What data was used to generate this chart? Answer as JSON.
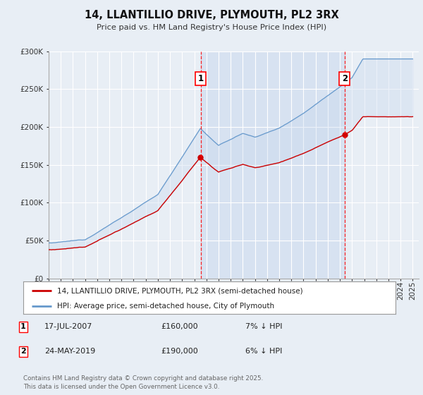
{
  "title": "14, LLANTILLIO DRIVE, PLYMOUTH, PL2 3RX",
  "subtitle": "Price paid vs. HM Land Registry's House Price Index (HPI)",
  "background_color": "#e8eef5",
  "plot_bg_color": "#e8eef5",
  "ylim": [
    0,
    300000
  ],
  "yticks": [
    0,
    50000,
    100000,
    150000,
    200000,
    250000,
    300000
  ],
  "ytick_labels": [
    "£0",
    "£50K",
    "£100K",
    "£150K",
    "£200K",
    "£250K",
    "£300K"
  ],
  "xstart_year": 1995,
  "xend_year": 2025,
  "hpi_color": "#6699cc",
  "price_color": "#cc0000",
  "fill_color": "#c8d8ee",
  "grid_color": "#ffffff",
  "marker1_x": 2007.54,
  "marker1_label": "1",
  "marker1_price": 160000,
  "marker1_date": "17-JUL-2007",
  "marker1_pct": "7% ↓ HPI",
  "marker2_x": 2019.39,
  "marker2_label": "2",
  "marker2_price": 190000,
  "marker2_date": "24-MAY-2019",
  "marker2_pct": "6% ↓ HPI",
  "legend_line1": "14, LLANTILLIO DRIVE, PLYMOUTH, PL2 3RX (semi-detached house)",
  "legend_line2": "HPI: Average price, semi-detached house, City of Plymouth",
  "footnote": "Contains HM Land Registry data © Crown copyright and database right 2025.\nThis data is licensed under the Open Government Licence v3.0."
}
